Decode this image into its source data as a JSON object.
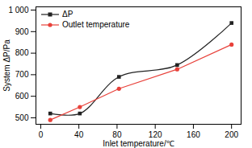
{
  "chart_data": {
    "type": "line",
    "x_label": "Inlet temperature/℃",
    "y_label": "System ΔP/Pa",
    "xlim": [
      -5,
      210
    ],
    "xticks": [
      0,
      40,
      80,
      120,
      160,
      200
    ],
    "ylim": [
      470,
      1015
    ],
    "yticks": [
      500,
      600,
      700,
      800,
      900,
      {
        "value": 1000,
        "label": "1 000"
      }
    ],
    "legend": "upper left",
    "grid": false,
    "series": [
      {
        "name": "ΔP",
        "color": "#222222",
        "marker": "square",
        "line_style": "smooth",
        "x": [
          10,
          41,
          82,
          143,
          200
        ],
        "values": [
          520,
          520,
          690,
          745,
          940
        ]
      },
      {
        "name": "Outlet temperature",
        "color": "#e8413a",
        "marker": "circle",
        "line_style": "solid",
        "x": [
          10,
          41,
          82,
          143,
          200
        ],
        "values": [
          490,
          550,
          635,
          725,
          840
        ]
      }
    ]
  }
}
